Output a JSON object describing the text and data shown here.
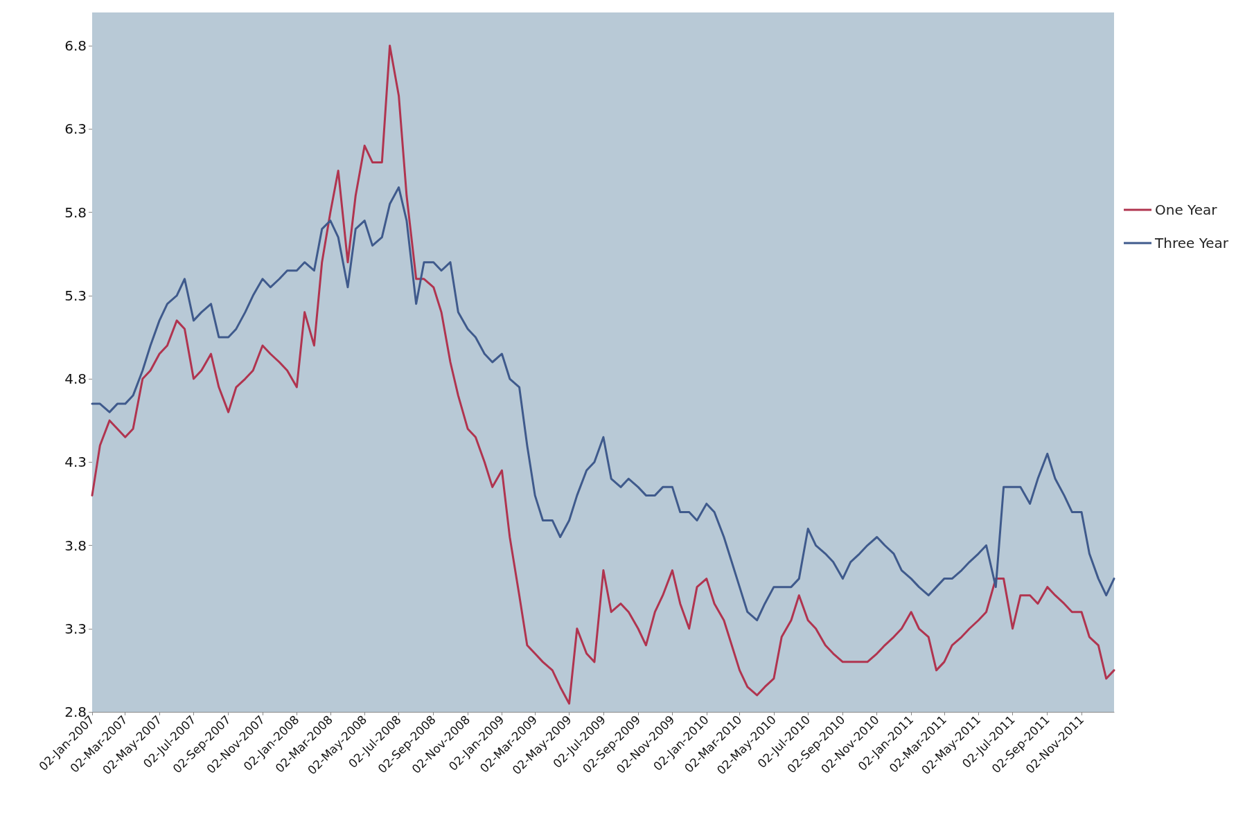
{
  "chart_data": {
    "type": "line",
    "x": [
      "2007-01-02",
      "2007-01-16",
      "2007-02-02",
      "2007-02-16",
      "2007-03-02",
      "2007-03-16",
      "2007-04-02",
      "2007-04-16",
      "2007-05-02",
      "2007-05-16",
      "2007-06-02",
      "2007-06-16",
      "2007-07-02",
      "2007-07-16",
      "2007-08-02",
      "2007-08-16",
      "2007-09-02",
      "2007-09-16",
      "2007-10-02",
      "2007-10-16",
      "2007-11-02",
      "2007-11-16",
      "2007-12-02",
      "2007-12-16",
      "2008-01-02",
      "2008-01-16",
      "2008-02-02",
      "2008-02-16",
      "2008-03-02",
      "2008-03-16",
      "2008-04-02",
      "2008-04-16",
      "2008-05-02",
      "2008-05-16",
      "2008-06-02",
      "2008-06-16",
      "2008-07-02",
      "2008-07-16",
      "2008-08-02",
      "2008-08-16",
      "2008-09-02",
      "2008-09-16",
      "2008-10-02",
      "2008-10-16",
      "2008-11-02",
      "2008-11-16",
      "2008-12-02",
      "2008-12-16",
      "2009-01-02",
      "2009-01-16",
      "2009-02-02",
      "2009-02-16",
      "2009-03-02",
      "2009-03-16",
      "2009-04-02",
      "2009-04-16",
      "2009-05-02",
      "2009-05-16",
      "2009-06-02",
      "2009-06-16",
      "2009-07-02",
      "2009-07-16",
      "2009-08-02",
      "2009-08-16",
      "2009-09-02",
      "2009-09-16",
      "2009-10-02",
      "2009-10-16",
      "2009-11-02",
      "2009-11-16",
      "2009-12-02",
      "2009-12-16",
      "2010-01-02",
      "2010-01-16",
      "2010-02-02",
      "2010-02-16",
      "2010-03-02",
      "2010-03-16",
      "2010-04-02",
      "2010-04-16",
      "2010-05-02",
      "2010-05-16",
      "2010-06-02",
      "2010-06-16",
      "2010-07-02",
      "2010-07-16",
      "2010-08-02",
      "2010-08-16",
      "2010-09-02",
      "2010-09-16",
      "2010-10-02",
      "2010-10-16",
      "2010-11-02",
      "2010-11-16",
      "2010-12-02",
      "2010-12-16",
      "2011-01-02",
      "2011-01-16",
      "2011-02-02",
      "2011-02-16",
      "2011-03-02",
      "2011-03-16",
      "2011-04-02",
      "2011-04-16",
      "2011-05-02",
      "2011-05-16",
      "2011-06-02",
      "2011-06-16",
      "2011-07-02",
      "2011-07-16",
      "2011-08-02",
      "2011-08-16",
      "2011-09-02",
      "2011-09-16",
      "2011-10-02",
      "2011-10-16",
      "2011-11-02",
      "2011-11-16",
      "2011-12-02",
      "2011-12-16",
      "2011-12-30"
    ],
    "series": [
      {
        "name": "One Year",
        "color": "#b0344f",
        "values": [
          4.1,
          4.4,
          4.55,
          4.5,
          4.45,
          4.5,
          4.8,
          4.85,
          4.95,
          5.0,
          5.15,
          5.1,
          4.8,
          4.85,
          4.95,
          4.75,
          4.6,
          4.75,
          4.8,
          4.85,
          5.0,
          4.95,
          4.9,
          4.85,
          4.75,
          5.2,
          5.0,
          5.5,
          5.8,
          6.05,
          5.5,
          5.9,
          6.2,
          6.1,
          6.1,
          6.8,
          6.5,
          5.9,
          5.4,
          5.4,
          5.35,
          5.2,
          4.9,
          4.7,
          4.5,
          4.45,
          4.3,
          4.15,
          4.25,
          3.85,
          3.5,
          3.2,
          3.15,
          3.1,
          3.05,
          2.95,
          2.85,
          3.3,
          3.15,
          3.1,
          3.65,
          3.4,
          3.45,
          3.4,
          3.3,
          3.2,
          3.4,
          3.5,
          3.65,
          3.45,
          3.3,
          3.55,
          3.6,
          3.45,
          3.35,
          3.2,
          3.05,
          2.95,
          2.9,
          2.95,
          3.0,
          3.25,
          3.35,
          3.5,
          3.35,
          3.3,
          3.2,
          3.15,
          3.1,
          3.1,
          3.1,
          3.1,
          3.15,
          3.2,
          3.25,
          3.3,
          3.4,
          3.3,
          3.25,
          3.05,
          3.1,
          3.2,
          3.25,
          3.3,
          3.35,
          3.4,
          3.6,
          3.6,
          3.3,
          3.5,
          3.5,
          3.45,
          3.55,
          3.5,
          3.45,
          3.4,
          3.4,
          3.25,
          3.2,
          3.0,
          3.05
        ]
      },
      {
        "name": "Three Year",
        "color": "#3f5a8c",
        "values": [
          4.65,
          4.65,
          4.6,
          4.65,
          4.65,
          4.7,
          4.85,
          5.0,
          5.15,
          5.25,
          5.3,
          5.4,
          5.15,
          5.2,
          5.25,
          5.05,
          5.05,
          5.1,
          5.2,
          5.3,
          5.4,
          5.35,
          5.4,
          5.45,
          5.45,
          5.5,
          5.45,
          5.7,
          5.75,
          5.65,
          5.35,
          5.7,
          5.75,
          5.6,
          5.65,
          5.85,
          5.95,
          5.75,
          5.25,
          5.5,
          5.5,
          5.45,
          5.5,
          5.2,
          5.1,
          5.05,
          4.95,
          4.9,
          4.95,
          4.8,
          4.75,
          4.4,
          4.1,
          3.95,
          3.95,
          3.85,
          3.95,
          4.1,
          4.25,
          4.3,
          4.45,
          4.2,
          4.15,
          4.2,
          4.15,
          4.1,
          4.1,
          4.15,
          4.15,
          4.0,
          4.0,
          3.95,
          4.05,
          4.0,
          3.85,
          3.7,
          3.55,
          3.4,
          3.35,
          3.45,
          3.55,
          3.55,
          3.55,
          3.6,
          3.9,
          3.8,
          3.75,
          3.7,
          3.6,
          3.7,
          3.75,
          3.8,
          3.85,
          3.8,
          3.75,
          3.65,
          3.6,
          3.55,
          3.5,
          3.55,
          3.6,
          3.6,
          3.65,
          3.7,
          3.75,
          3.8,
          3.55,
          4.15,
          4.15,
          4.15,
          4.05,
          4.2,
          4.35,
          4.2,
          4.1,
          4.0,
          4.0,
          3.75,
          3.6,
          3.5,
          3.6
        ]
      }
    ],
    "xlim": [
      "2007-01-02",
      "2011-12-30"
    ],
    "xticks": [
      {
        "value": "2007-01-02",
        "label": "02-Jan-2007"
      },
      {
        "value": "2007-03-02",
        "label": "02-Mar-2007"
      },
      {
        "value": "2007-05-02",
        "label": "02-May-2007"
      },
      {
        "value": "2007-07-02",
        "label": "02-Jul-2007"
      },
      {
        "value": "2007-09-02",
        "label": "02-Sep-2007"
      },
      {
        "value": "2007-11-02",
        "label": "02-Nov-2007"
      },
      {
        "value": "2008-01-02",
        "label": "02-Jan-2008"
      },
      {
        "value": "2008-03-02",
        "label": "02-Mar-2008"
      },
      {
        "value": "2008-05-02",
        "label": "02-May-2008"
      },
      {
        "value": "2008-07-02",
        "label": "02-Jul-2008"
      },
      {
        "value": "2008-09-02",
        "label": "02-Sep-2008"
      },
      {
        "value": "2008-11-02",
        "label": "02-Nov-2008"
      },
      {
        "value": "2009-01-02",
        "label": "02-Jan-2009"
      },
      {
        "value": "2009-03-02",
        "label": "02-Mar-2009"
      },
      {
        "value": "2009-05-02",
        "label": "02-May-2009"
      },
      {
        "value": "2009-07-02",
        "label": "02-Jul-2009"
      },
      {
        "value": "2009-09-02",
        "label": "02-Sep-2009"
      },
      {
        "value": "2009-11-02",
        "label": "02-Nov-2009"
      },
      {
        "value": "2010-01-02",
        "label": "02-Jan-2010"
      },
      {
        "value": "2010-03-02",
        "label": "02-Mar-2010"
      },
      {
        "value": "2010-05-02",
        "label": "02-May-2010"
      },
      {
        "value": "2010-07-02",
        "label": "02-Jul-2010"
      },
      {
        "value": "2010-09-02",
        "label": "02-Sep-2010"
      },
      {
        "value": "2010-11-02",
        "label": "02-Nov-2010"
      },
      {
        "value": "2011-01-02",
        "label": "02-Jan-2011"
      },
      {
        "value": "2011-03-02",
        "label": "02-Mar-2011"
      },
      {
        "value": "2011-05-02",
        "label": "02-May-2011"
      },
      {
        "value": "2011-07-02",
        "label": "02-Jul-2011"
      },
      {
        "value": "2011-09-02",
        "label": "02-Sep-2011"
      },
      {
        "value": "2011-11-02",
        "label": "02-Nov-2011"
      }
    ],
    "ylim": [
      2.8,
      7.0
    ],
    "yticks": [
      2.8,
      3.3,
      3.8,
      4.3,
      4.8,
      5.3,
      5.8,
      6.3,
      6.8
    ],
    "legend": "right",
    "grid": false,
    "marker": "none",
    "line_style": "solid"
  }
}
